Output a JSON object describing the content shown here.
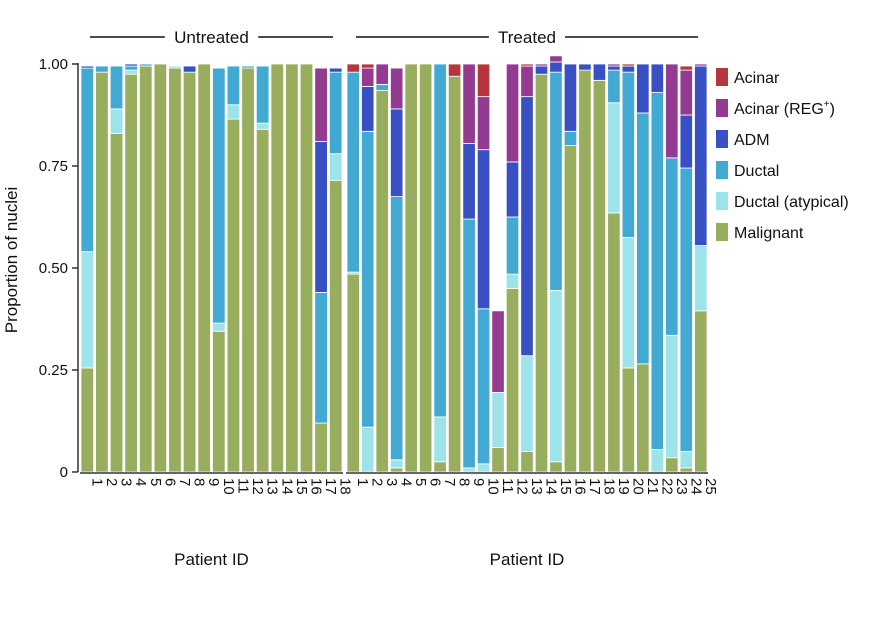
{
  "chart_data": {
    "type": "bar",
    "stacked": true,
    "ylabel": "Proportion of nuclei",
    "ylim": [
      0,
      1
    ],
    "yticks": [
      0,
      0.25,
      0.5,
      0.75,
      1.0
    ],
    "ytick_labels": [
      "0",
      "0.25",
      "0.50",
      "0.75",
      "1.00"
    ],
    "legend": {
      "placement": "right",
      "entries": [
        {
          "name": "Acinar",
          "sup": "",
          "color": "#b5373d"
        },
        {
          "name": "Acinar (REG",
          "sup": "+",
          "suffix": ")",
          "color": "#923b91"
        },
        {
          "name": "ADM",
          "sup": "",
          "color": "#3850c4"
        },
        {
          "name": "Ductal",
          "sup": "",
          "color": "#41a9d2"
        },
        {
          "name": "Ductal (atypical)",
          "sup": "",
          "color": "#9ce3ea"
        },
        {
          "name": "Malignant",
          "sup": "",
          "color": "#99ad5e"
        }
      ]
    },
    "stack_order_bottom_to_top": [
      "Malignant",
      "Ductal (atypical)",
      "Ductal",
      "ADM",
      "Acinar (REG+)",
      "Acinar"
    ],
    "panels": [
      {
        "title": "Untreated",
        "xlabel": "Patient ID",
        "categories": [
          "1",
          "2",
          "3",
          "4",
          "5",
          "6",
          "7",
          "8",
          "9",
          "10",
          "11",
          "12",
          "13",
          "14",
          "15",
          "16",
          "17",
          "18"
        ],
        "series": [
          {
            "name": "Malignant",
            "values": [
              0.255,
              0.98,
              0.83,
              0.975,
              0.995,
              1.0,
              0.99,
              0.98,
              1.0,
              0.345,
              0.865,
              0.99,
              0.84,
              1.0,
              1.0,
              1.0,
              0.12,
              0.715
            ]
          },
          {
            "name": "Ductal (atypical)",
            "values": [
              0.285,
              0.0,
              0.06,
              0.01,
              0.0,
              0.0,
              0.005,
              0.0,
              0.0,
              0.02,
              0.035,
              0.0,
              0.015,
              0.0,
              0.0,
              0.0,
              0.0,
              0.065
            ]
          },
          {
            "name": "Ductal",
            "values": [
              0.45,
              0.015,
              0.105,
              0.01,
              0.005,
              0.0,
              0.0,
              0.0,
              0.0,
              0.625,
              0.095,
              0.005,
              0.14,
              0.0,
              0.0,
              0.0,
              0.32,
              0.2
            ]
          },
          {
            "name": "ADM",
            "values": [
              0.005,
              0.0,
              0.0,
              0.005,
              0.0,
              0.0,
              0.0,
              0.015,
              0.0,
              0.0,
              0.0,
              0.0,
              0.0,
              0.0,
              0.0,
              0.0,
              0.37,
              0.01
            ]
          },
          {
            "name": "Acinar (REG+)",
            "values": [
              0.0,
              0.0,
              0.0,
              0.0,
              0.0,
              0.0,
              0.0,
              0.0,
              0.0,
              0.0,
              0.0,
              0.0,
              0.0,
              0.0,
              0.0,
              0.0,
              0.18,
              0.0
            ]
          },
          {
            "name": "Acinar",
            "values": [
              0.0,
              0.0,
              0.0,
              0.0,
              0.0,
              0.0,
              0.0,
              0.0,
              0.0,
              0.0,
              0.0,
              0.0,
              0.0,
              0.0,
              0.0,
              0.0,
              0.0,
              0.0
            ]
          }
        ]
      },
      {
        "title": "Treated",
        "xlabel": "Patient ID",
        "categories": [
          "1",
          "2",
          "3",
          "4",
          "5",
          "6",
          "7",
          "8",
          "9",
          "10",
          "11",
          "12",
          "13",
          "14",
          "15",
          "16",
          "17",
          "18",
          "19",
          "20",
          "21",
          "22",
          "23",
          "24",
          "25"
        ],
        "series": [
          {
            "name": "Malignant",
            "values": [
              0.485,
              0.0,
              0.935,
              0.01,
              1.0,
              1.0,
              0.025,
              0.97,
              0.0,
              0.0,
              0.06,
              0.45,
              0.05,
              0.975,
              0.025,
              0.8,
              0.985,
              0.96,
              0.635,
              0.255,
              0.265,
              0.0,
              0.035,
              0.01,
              0.395
            ]
          },
          {
            "name": "Ductal (atypical)",
            "values": [
              0.005,
              0.11,
              0.0,
              0.02,
              0.0,
              0.0,
              0.11,
              0.0,
              0.01,
              0.02,
              0.135,
              0.035,
              0.235,
              0.0,
              0.42,
              0.0,
              0.0,
              0.0,
              0.27,
              0.32,
              0.0,
              0.055,
              0.3,
              0.04,
              0.16
            ]
          },
          {
            "name": "Ductal",
            "values": [
              0.49,
              0.725,
              0.015,
              0.645,
              0.0,
              0.0,
              0.865,
              0.0,
              0.61,
              0.38,
              0.0,
              0.14,
              0.0,
              0.0,
              0.535,
              0.035,
              0.0,
              0.0,
              0.08,
              0.405,
              0.615,
              0.875,
              0.435,
              0.695,
              0.0
            ]
          },
          {
            "name": "ADM",
            "values": [
              0.0,
              0.11,
              0.0,
              0.215,
              0.0,
              0.0,
              0.0,
              0.0,
              0.185,
              0.39,
              0.0,
              0.135,
              0.635,
              0.02,
              0.025,
              0.165,
              0.015,
              0.04,
              0.01,
              0.015,
              0.12,
              0.07,
              0.0,
              0.13,
              0.44
            ]
          },
          {
            "name": "Acinar (REG+)",
            "values": [
              0.0,
              0.045,
              0.05,
              0.1,
              0.0,
              0.0,
              0.0,
              0.0,
              0.195,
              0.13,
              0.2,
              0.24,
              0.075,
              0.005,
              0.015,
              0.0,
              0.0,
              0.0,
              0.005,
              0.0,
              0.0,
              0.0,
              0.23,
              0.11,
              0.005
            ]
          },
          {
            "name": "Acinar",
            "values": [
              0.02,
              0.01,
              0.0,
              0.0,
              0.0,
              0.0,
              0.0,
              0.03,
              0.0,
              0.08,
              0.0,
              0.0,
              0.005,
              0.0,
              0.0,
              0.0,
              0.0,
              0.0,
              0.0,
              0.005,
              0.0,
              0.0,
              0.0,
              0.01,
              0.0
            ]
          }
        ]
      }
    ]
  }
}
